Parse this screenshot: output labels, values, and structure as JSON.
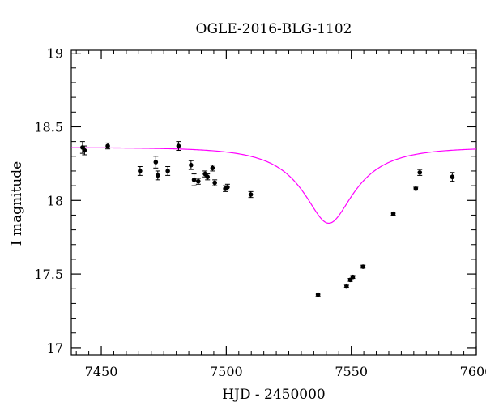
{
  "chart_data": {
    "type": "scatter",
    "title": "OGLE-2016-BLG-1102",
    "xlabel": "HJD - 2450000",
    "ylabel": "I magnitude",
    "xlim": [
      7438,
      7600
    ],
    "ylim": [
      19.02,
      16.95
    ],
    "y_inverted": true,
    "x_ticks": [
      7450,
      7500,
      7550,
      7600
    ],
    "x_tick_labels": [
      "7450",
      "7500",
      "7550",
      "7600"
    ],
    "y_ticks": [
      17,
      17.5,
      18,
      18.5,
      19
    ],
    "y_tick_labels": [
      "17",
      "17.5",
      "18",
      "18.5",
      "19"
    ],
    "grid": false,
    "colors": {
      "data": "#000000",
      "model": "#ff00ff"
    },
    "series": [
      {
        "kind": "data_with_errorbars",
        "points": [
          {
            "x": 7442.5,
            "y": 18.36,
            "err": 0.04
          },
          {
            "x": 7443.3,
            "y": 18.34,
            "err": 0.03
          },
          {
            "x": 7452.6,
            "y": 18.37,
            "err": 0.02
          },
          {
            "x": 7465.5,
            "y": 18.2,
            "err": 0.03
          },
          {
            "x": 7471.8,
            "y": 18.26,
            "err": 0.04
          },
          {
            "x": 7472.6,
            "y": 18.17,
            "err": 0.03
          },
          {
            "x": 7476.6,
            "y": 18.2,
            "err": 0.03
          },
          {
            "x": 7480.9,
            "y": 18.37,
            "err": 0.03
          },
          {
            "x": 7485.9,
            "y": 18.24,
            "err": 0.03
          },
          {
            "x": 7487.1,
            "y": 18.14,
            "err": 0.04
          },
          {
            "x": 7488.8,
            "y": 18.13,
            "err": 0.02
          },
          {
            "x": 7491.5,
            "y": 18.18,
            "err": 0.02
          },
          {
            "x": 7492.5,
            "y": 18.16,
            "err": 0.02
          },
          {
            "x": 7494.5,
            "y": 18.22,
            "err": 0.02
          },
          {
            "x": 7495.4,
            "y": 18.12,
            "err": 0.02
          },
          {
            "x": 7499.6,
            "y": 18.08,
            "err": 0.02
          },
          {
            "x": 7500.5,
            "y": 18.09,
            "err": 0.02
          },
          {
            "x": 7509.8,
            "y": 18.04,
            "err": 0.02
          },
          {
            "x": 7536.7,
            "y": 17.36,
            "err": 0.01
          },
          {
            "x": 7548.1,
            "y": 17.42,
            "err": 0.01
          },
          {
            "x": 7549.6,
            "y": 17.46,
            "err": 0.01
          },
          {
            "x": 7550.6,
            "y": 17.48,
            "err": 0.01
          },
          {
            "x": 7554.7,
            "y": 17.55,
            "err": 0.01
          },
          {
            "x": 7566.8,
            "y": 17.91,
            "err": 0.01
          },
          {
            "x": 7575.8,
            "y": 18.08,
            "err": 0.01
          },
          {
            "x": 7577.4,
            "y": 18.19,
            "err": 0.02
          },
          {
            "x": 7590.4,
            "y": 18.16,
            "err": 0.03
          }
        ]
      },
      {
        "kind": "model_curve",
        "model": "point-lens",
        "params": {
          "t0": 7541.0,
          "tE": 24.0,
          "u0": 0.37,
          "fs": 0.33,
          "base_mag": 18.36
        }
      }
    ]
  }
}
